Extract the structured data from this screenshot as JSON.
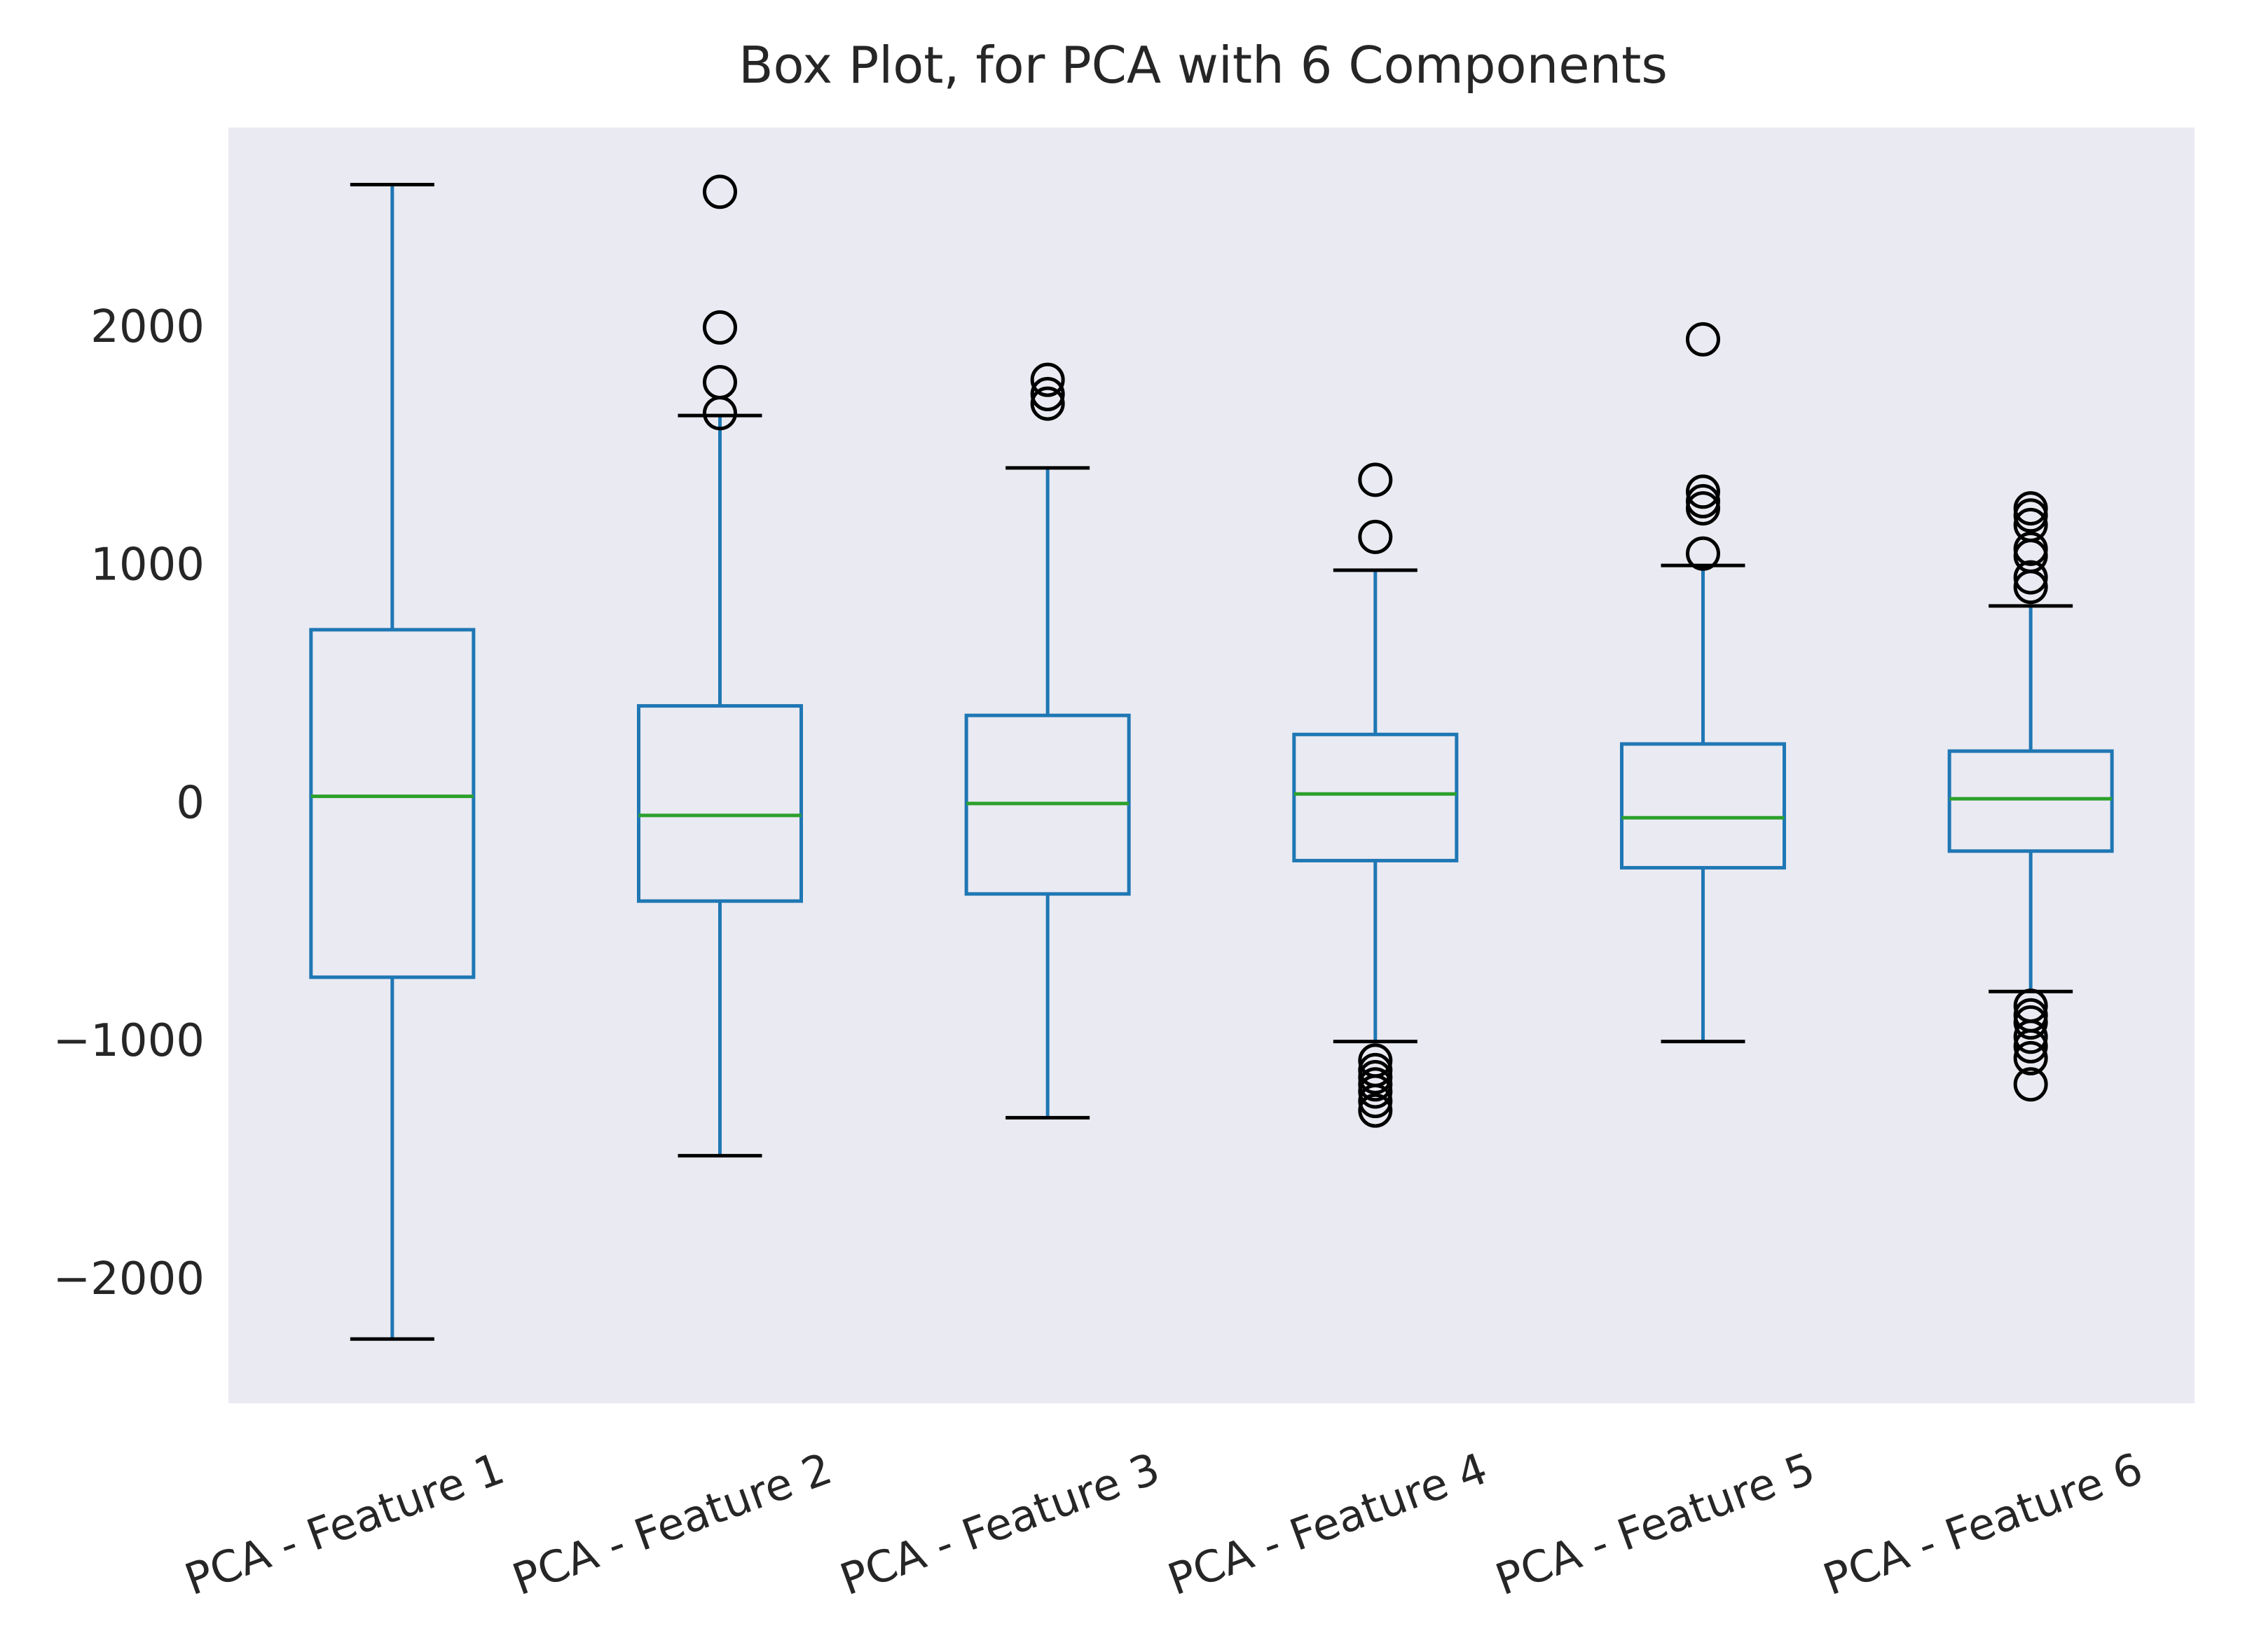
{
  "chart_data": {
    "type": "box",
    "title": "Box Plot, for PCA with 6 Components",
    "xlabel": "",
    "ylabel": "",
    "ylim": [
      -2530,
      2830
    ],
    "yticks": [
      2000,
      1000,
      0,
      -1000,
      -2000
    ],
    "ytick_labels": [
      "2000",
      "1000",
      "0",
      "−1000",
      "−2000"
    ],
    "grid": false,
    "background": "#EAEAF2",
    "colors": {
      "box": "#1F77B4",
      "median": "#2CA02C",
      "caps": "#000000",
      "outliers": "#000000"
    },
    "categories": [
      "PCA - Feature 1",
      "PCA - Feature 2",
      "PCA - Feature 3",
      "PCA - Feature 4",
      "PCA - Feature 5",
      "PCA - Feature 6"
    ],
    "boxes": [
      {
        "whisker_low": -2260,
        "q1": -740,
        "median": 20,
        "q3": 720,
        "whisker_high": 2590,
        "outliers": []
      },
      {
        "whisker_low": -1490,
        "q1": -420,
        "median": -60,
        "q3": 400,
        "whisker_high": 1620,
        "outliers": [
          1630,
          1760,
          1990,
          2560
        ]
      },
      {
        "whisker_low": -1330,
        "q1": -390,
        "median": -10,
        "q3": 360,
        "whisker_high": 1400,
        "outliers": [
          1670,
          1710,
          1770
        ]
      },
      {
        "whisker_low": -1010,
        "q1": -250,
        "median": 30,
        "q3": 280,
        "whisker_high": 970,
        "outliers": [
          -1090,
          -1130,
          -1160,
          -1190,
          -1220,
          -1260,
          -1300,
          1110,
          1350
        ]
      },
      {
        "whisker_low": -1010,
        "q1": -280,
        "median": -70,
        "q3": 240,
        "whisker_high": 990,
        "outliers": [
          1040,
          1230,
          1260,
          1300,
          1940
        ]
      },
      {
        "whisker_low": -800,
        "q1": -210,
        "median": 10,
        "q3": 210,
        "whisker_high": 820,
        "outliers": [
          -860,
          -900,
          -930,
          -990,
          -1030,
          -1080,
          -1190,
          900,
          940,
          1030,
          1060,
          1160,
          1200,
          1230
        ]
      }
    ]
  }
}
